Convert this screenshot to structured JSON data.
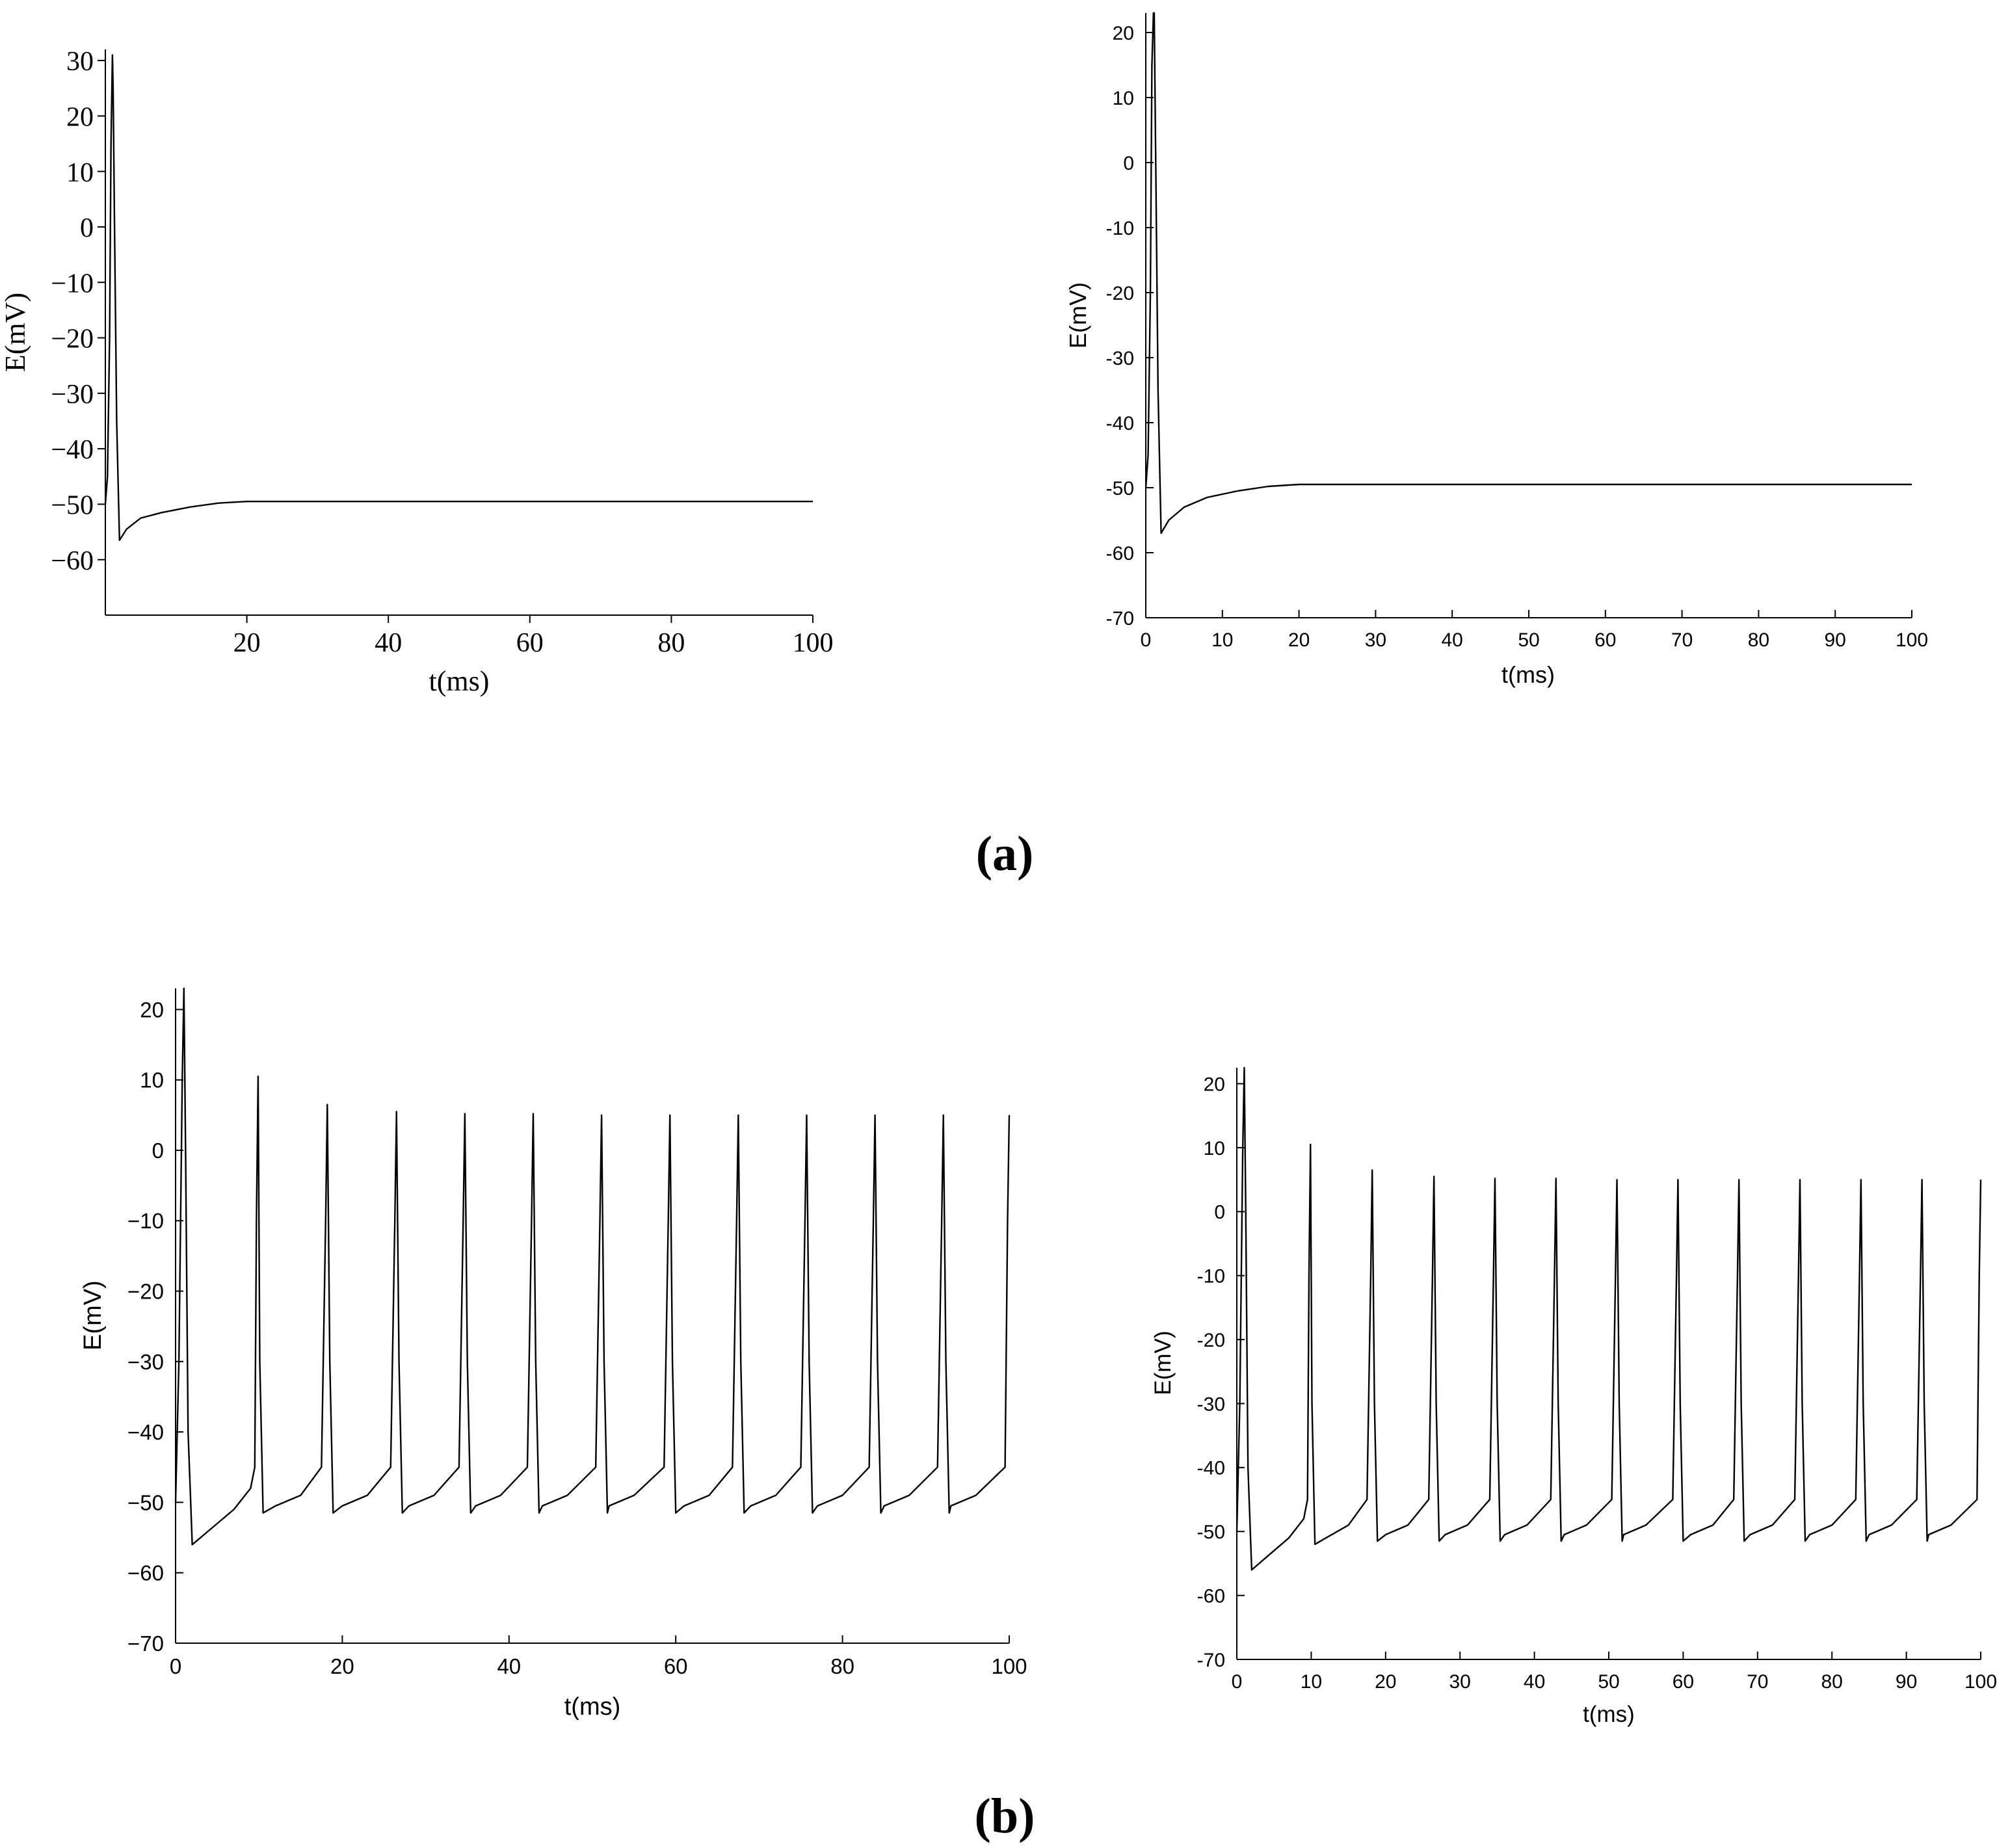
{
  "panel_labels": {
    "a": "(a)",
    "b": "(b)"
  },
  "chart_data": [
    {
      "id": "a-left",
      "type": "line",
      "xlabel": "t(ms)",
      "ylabel": "E(mV)",
      "xlim": [
        0,
        100
      ],
      "ylim": [
        -70,
        32
      ],
      "xticks": [
        20,
        40,
        60,
        80,
        100
      ],
      "yticks": [
        30,
        20,
        10,
        0,
        -10,
        -20,
        -30,
        -40,
        -50,
        -60
      ],
      "xtick_labels": [
        "20",
        "40",
        "60",
        "80",
        "100"
      ],
      "ytick_labels": [
        "30",
        "20",
        "10",
        "0",
        "−10",
        "−20",
        "−30",
        "−40",
        "−50",
        "−60"
      ],
      "grid": false,
      "series": [
        {
          "x": [
            0,
            0.3,
            0.6,
            0.8,
            1.0,
            1.1,
            1.3,
            1.6,
            2,
            3,
            5,
            8,
            12,
            16,
            20,
            40,
            60,
            80,
            100
          ],
          "y": [
            -50,
            -45,
            -20,
            15,
            31,
            25,
            0,
            -35,
            -56.5,
            -54.5,
            -52.5,
            -51.5,
            -50.5,
            -49.8,
            -49.5,
            -49.5,
            -49.5,
            -49.5,
            -49.5
          ]
        }
      ]
    },
    {
      "id": "a-right",
      "type": "line",
      "xlabel": "t(ms)",
      "ylabel": "E(mV)",
      "xlim": [
        0,
        100
      ],
      "ylim": [
        -70,
        23
      ],
      "xticks": [
        0,
        10,
        20,
        30,
        40,
        50,
        60,
        70,
        80,
        90,
        100
      ],
      "yticks": [
        20,
        10,
        0,
        -10,
        -20,
        -30,
        -40,
        -50,
        -60,
        -70
      ],
      "xtick_labels": [
        "0",
        "10",
        "20",
        "30",
        "40",
        "50",
        "60",
        "70",
        "80",
        "90",
        "100"
      ],
      "ytick_labels": [
        "20",
        "10",
        "0",
        "-10",
        "-20",
        "-30",
        "-40",
        "-50",
        "-60",
        "-70"
      ],
      "grid": false,
      "series": [
        {
          "x": [
            0,
            0.3,
            0.6,
            0.8,
            1.0,
            1.1,
            1.3,
            1.6,
            2,
            3,
            5,
            8,
            12,
            16,
            20,
            40,
            60,
            80,
            100
          ],
          "y": [
            -50,
            -45,
            -20,
            15,
            23,
            23,
            0,
            -35,
            -57,
            -55,
            -53,
            -51.5,
            -50.5,
            -49.8,
            -49.5,
            -49.5,
            -49.5,
            -49.5,
            -49.5
          ]
        }
      ]
    },
    {
      "id": "b-left",
      "type": "line",
      "xlabel": "t(ms)",
      "ylabel": "E(mV)",
      "xlim": [
        0,
        100
      ],
      "ylim": [
        -70,
        23
      ],
      "xticks": [
        0,
        20,
        40,
        60,
        80,
        100
      ],
      "yticks": [
        20,
        10,
        0,
        -10,
        -20,
        -30,
        -40,
        -50,
        -60,
        -70
      ],
      "xtick_labels": [
        "0",
        "20",
        "40",
        "60",
        "80",
        "100"
      ],
      "ytick_labels": [
        "20",
        "10",
        "0",
        "−10",
        "−20",
        "−30",
        "−40",
        "−50",
        "−60",
        "−70"
      ],
      "grid": false,
      "series": [
        {
          "x": [
            0,
            0.4,
            0.8,
            1.0,
            1.2,
            1.5,
            2,
            4,
            7,
            9,
            9.5,
            9.7,
            9.9,
            10.1,
            10.5,
            12,
            15,
            17.5,
            18.0,
            18.2,
            18.5,
            18.9,
            20,
            23,
            25.8,
            26.3,
            26.5,
            26.8,
            27.2,
            28,
            31,
            34.0,
            34.5,
            34.7,
            35.0,
            35.4,
            36,
            39,
            42.2,
            42.7,
            42.9,
            43.2,
            43.6,
            44,
            47,
            50.4,
            50.9,
            51.1,
            51.4,
            51.8,
            52,
            55,
            58.6,
            59.1,
            59.3,
            59.6,
            60.0,
            61,
            64,
            66.8,
            67.3,
            67.5,
            67.8,
            68.2,
            69,
            72,
            75.0,
            75.5,
            75.7,
            76.0,
            76.4,
            77,
            80,
            83.2,
            83.7,
            83.9,
            84.2,
            84.6,
            85,
            88,
            91.4,
            91.9,
            92.1,
            92.4,
            92.8,
            93,
            96,
            99.5,
            99.8,
            100
          ],
          "y": [
            -50,
            -30,
            10,
            23,
            0,
            -40,
            -56,
            -54,
            -51,
            -48,
            -45,
            -10,
            10.5,
            -30,
            -51.5,
            -50.5,
            -49,
            -45,
            -10,
            6.5,
            -30,
            -51.5,
            -50.5,
            -49,
            -45,
            -10,
            5.5,
            -30,
            -51.5,
            -50.5,
            -49,
            -45,
            -10,
            5.2,
            -30,
            -51.5,
            -50.5,
            -49,
            -45,
            -10,
            5.2,
            -30,
            -51.5,
            -50.5,
            -49,
            -45,
            -10,
            5,
            -30,
            -51.5,
            -50.5,
            -49,
            -45,
            -10,
            5,
            -30,
            -51.5,
            -50.5,
            -49,
            -45,
            -10,
            5,
            -30,
            -51.5,
            -50.5,
            -49,
            -45,
            -10,
            5,
            -30,
            -51.5,
            -50.5,
            -49,
            -45,
            -10,
            5,
            -30,
            -51.5,
            -50.5,
            -49,
            -45,
            -10,
            5,
            -30,
            -51.5,
            -50.5,
            -49,
            -45,
            -10,
            5
          ]
        }
      ]
    },
    {
      "id": "b-right",
      "type": "line",
      "xlabel": "t(ms)",
      "ylabel": "E(mV)",
      "xlim": [
        0,
        100
      ],
      "ylim": [
        -70,
        22.5
      ],
      "xticks": [
        0,
        10,
        20,
        30,
        40,
        50,
        60,
        70,
        80,
        90,
        100
      ],
      "yticks": [
        20,
        10,
        0,
        -10,
        -20,
        -30,
        -40,
        -50,
        -60,
        -70
      ],
      "xtick_labels": [
        "0",
        "10",
        "20",
        "30",
        "40",
        "50",
        "60",
        "70",
        "80",
        "90",
        "100"
      ],
      "ytick_labels": [
        "20",
        "10",
        "0",
        "-10",
        "-20",
        "-30",
        "-40",
        "-50",
        "-60",
        "-70"
      ],
      "grid": false,
      "series": [
        {
          "x": [
            0,
            0.4,
            0.8,
            1.0,
            1.2,
            1.5,
            2,
            4,
            7,
            9,
            9.5,
            9.7,
            9.9,
            10.1,
            10.5,
            12,
            15,
            17.5,
            18.0,
            18.2,
            18.5,
            18.9,
            20,
            23,
            25.8,
            26.3,
            26.5,
            26.8,
            27.2,
            28,
            31,
            34.0,
            34.5,
            34.7,
            35.0,
            35.4,
            36,
            39,
            42.2,
            42.7,
            42.9,
            43.2,
            43.6,
            44,
            47,
            50.4,
            50.9,
            51.1,
            51.4,
            51.8,
            52,
            55,
            58.6,
            59.1,
            59.3,
            59.6,
            60.0,
            61,
            64,
            66.8,
            67.3,
            67.5,
            67.8,
            68.2,
            69,
            72,
            75.0,
            75.5,
            75.7,
            76.0,
            76.4,
            77,
            80,
            83.2,
            83.7,
            83.9,
            84.2,
            84.6,
            85,
            88,
            91.4,
            91.9,
            92.1,
            92.4,
            92.8,
            93,
            96,
            99.5,
            99.8,
            100
          ],
          "y": [
            -50,
            -30,
            10,
            22.5,
            0,
            -40,
            -56,
            -54,
            -51,
            -48,
            -45,
            -10,
            10.5,
            -30,
            -52,
            -51,
            -49,
            -45,
            -10,
            6.5,
            -30,
            -51.5,
            -50.5,
            -49,
            -45,
            -10,
            5.5,
            -30,
            -51.5,
            -50.5,
            -49,
            -45,
            -10,
            5.2,
            -30,
            -51.5,
            -50.5,
            -49,
            -45,
            -10,
            5.2,
            -30,
            -51.5,
            -50.5,
            -49,
            -45,
            -10,
            5,
            -30,
            -51.5,
            -50.5,
            -49,
            -45,
            -10,
            5,
            -30,
            -51.5,
            -50.5,
            -49,
            -45,
            -10,
            5,
            -30,
            -51.5,
            -50.5,
            -49,
            -45,
            -10,
            5,
            -30,
            -51.5,
            -50.5,
            -49,
            -45,
            -10,
            5,
            -30,
            -51.5,
            -50.5,
            -49,
            -45,
            -10,
            5,
            -30,
            -51.5,
            -50.5,
            -49,
            -45,
            -10,
            5
          ]
        }
      ]
    }
  ]
}
